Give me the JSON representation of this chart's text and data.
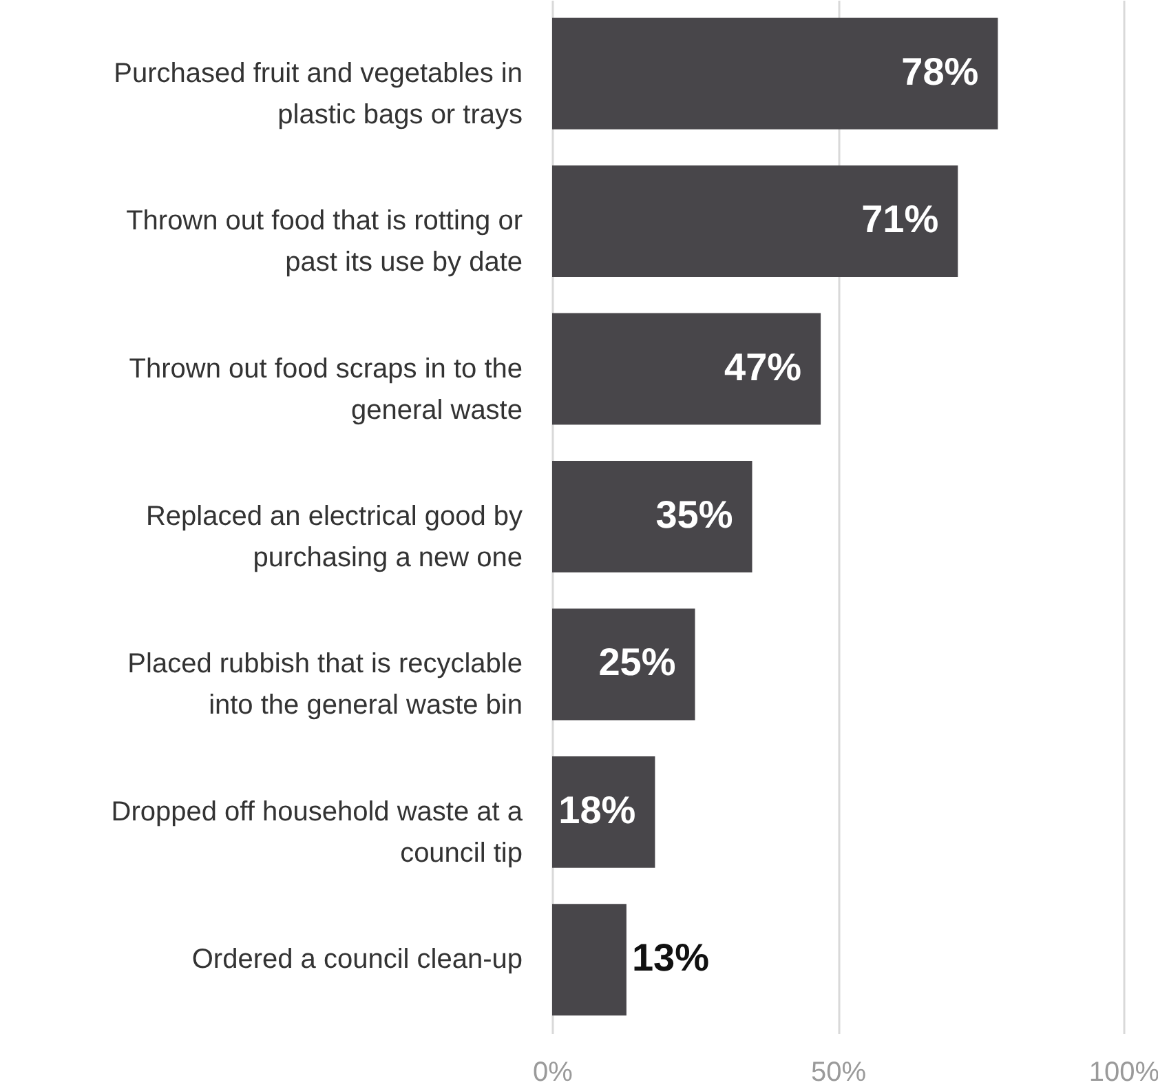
{
  "chart_data": {
    "type": "bar",
    "orientation": "horizontal",
    "categories": [
      "Purchased fruit and vegetables in plastic bags or trays",
      "Thrown out food that is rotting or past its use by date",
      "Thrown out food scraps in to the general waste",
      "Replaced an electrical good by purchasing a new one",
      "Placed rubbish that is recyclable into the general waste bin",
      "Dropped off household waste at a council tip",
      "Ordered a council clean-up"
    ],
    "values": [
      78,
      71,
      47,
      35,
      25,
      18,
      13
    ],
    "value_labels": [
      "78%",
      "71%",
      "47%",
      "35%",
      "25%",
      "18%",
      "13%"
    ],
    "color": "#48464a",
    "xlim": [
      0,
      100
    ],
    "xticks": [
      {
        "value": 0,
        "label": "0%"
      },
      {
        "value": 50,
        "label": "50%"
      },
      {
        "value": 100,
        "label": "100%"
      }
    ],
    "grid": "x"
  }
}
